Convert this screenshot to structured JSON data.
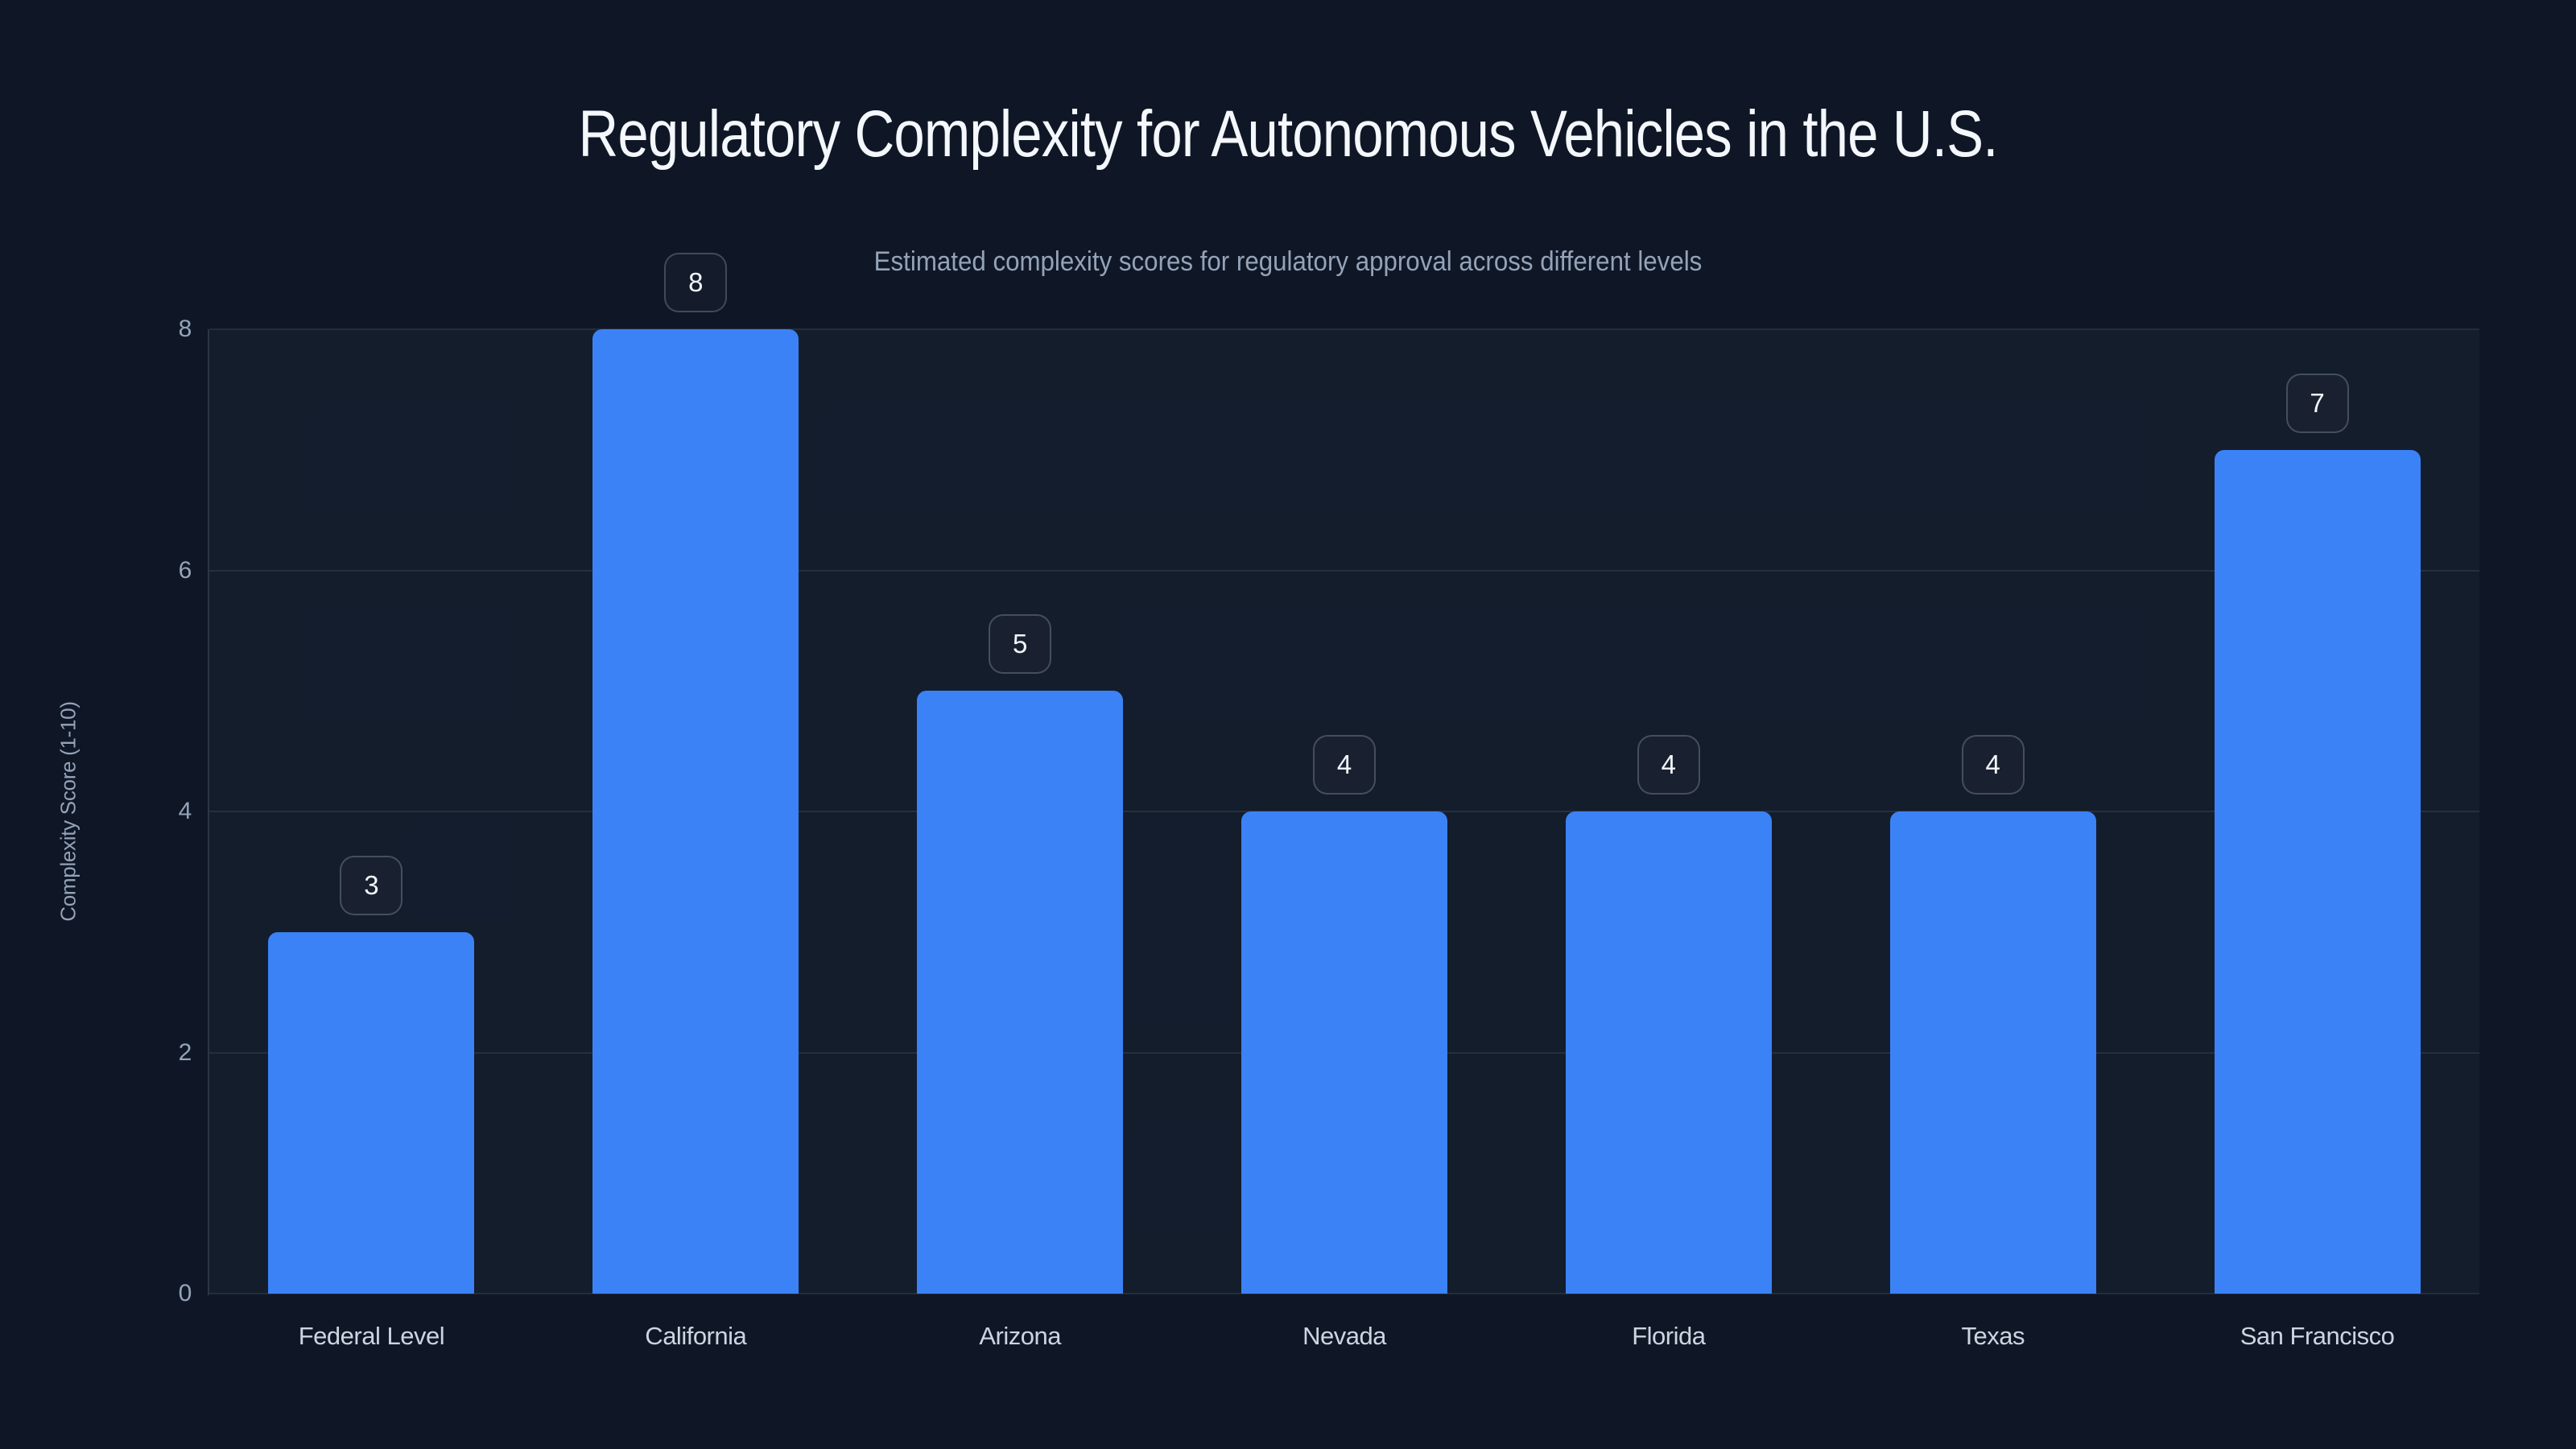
{
  "colors": {
    "background": "#0f1726",
    "bar": "#3b82f6",
    "title_text": "#f4f7fb",
    "subtitle_text": "#94a3b8",
    "tick_text": "#94a3b8",
    "category_text": "#cbd5e1",
    "badge_text": "#f1f5f9",
    "badge_border": "rgba(148,163,184,0.35)",
    "gridline": "rgba(148,163,184,0.14)"
  },
  "chart_data": {
    "type": "bar",
    "title": "Regulatory Complexity for Autonomous Vehicles in the U.S.",
    "subtitle": "Estimated complexity scores for regulatory approval across different levels",
    "categories": [
      "Federal Level",
      "California",
      "Arizona",
      "Nevada",
      "Florida",
      "Texas",
      "San Francisco"
    ],
    "values": [
      3,
      8,
      5,
      4,
      4,
      4,
      7
    ],
    "xlabel": "",
    "ylabel": "Complexity Score (1-10)",
    "yticks": [
      0,
      2,
      4,
      6,
      8
    ],
    "ylim": [
      0,
      8
    ],
    "grid": "horizontal",
    "legend": "none",
    "value_labels_shown": true
  }
}
